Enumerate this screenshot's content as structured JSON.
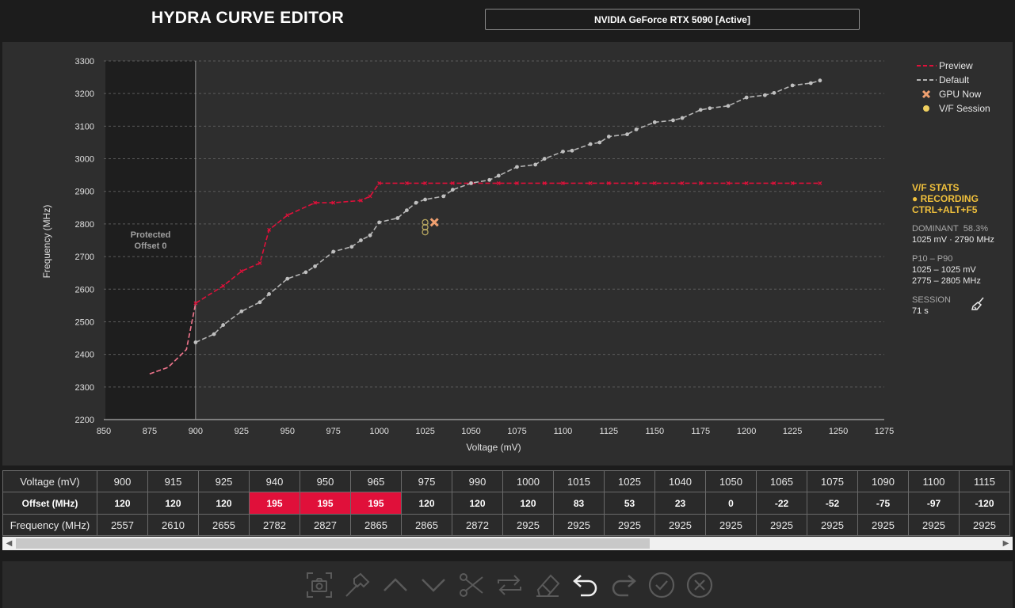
{
  "app": {
    "title": "HYDRA CURVE EDITOR"
  },
  "gpu_select": {
    "value": "NVIDIA GeForce RTX 5090  [Active]"
  },
  "chart": {
    "protected_label_1": "Protected",
    "protected_label_2": "Offset 0",
    "protected_range_mv": [
      850,
      900
    ]
  },
  "chart_data": {
    "type": "line",
    "xlabel": "Voltage (mV)",
    "ylabel": "Frequency (MHz)",
    "xlim": [
      850,
      1275
    ],
    "ylim": [
      2200,
      3300
    ],
    "xticks": [
      850,
      875,
      900,
      925,
      950,
      975,
      1000,
      1025,
      1050,
      1075,
      1100,
      1125,
      1150,
      1175,
      1200,
      1225,
      1250,
      1275
    ],
    "yticks": [
      2200,
      2300,
      2400,
      2500,
      2600,
      2700,
      2800,
      2900,
      3000,
      3100,
      3200,
      3300
    ],
    "grid": "horizontal",
    "legend_position": "top-right",
    "series": [
      {
        "name": "Preview",
        "color": "#e0103a",
        "dash": "dashed",
        "points": [
          [
            875,
            2340
          ],
          [
            885,
            2360
          ],
          [
            895,
            2415
          ],
          [
            900,
            2557
          ],
          [
            915,
            2610
          ],
          [
            925,
            2655
          ],
          [
            935,
            2680
          ],
          [
            940,
            2782
          ],
          [
            950,
            2827
          ],
          [
            965,
            2865
          ],
          [
            975,
            2865
          ],
          [
            990,
            2872
          ],
          [
            995,
            2885
          ],
          [
            1000,
            2925
          ],
          [
            1015,
            2925
          ],
          [
            1025,
            2925
          ],
          [
            1040,
            2925
          ],
          [
            1050,
            2925
          ],
          [
            1065,
            2925
          ],
          [
            1075,
            2925
          ],
          [
            1090,
            2925
          ],
          [
            1100,
            2925
          ],
          [
            1115,
            2925
          ],
          [
            1125,
            2925
          ],
          [
            1140,
            2925
          ],
          [
            1150,
            2925
          ],
          [
            1165,
            2925
          ],
          [
            1175,
            2925
          ],
          [
            1190,
            2925
          ],
          [
            1200,
            2925
          ],
          [
            1215,
            2925
          ],
          [
            1225,
            2925
          ],
          [
            1240,
            2925
          ]
        ]
      },
      {
        "name": "Default",
        "color": "#b4b4b4",
        "dash": "dashed",
        "points": [
          [
            900,
            2437
          ],
          [
            910,
            2462
          ],
          [
            915,
            2490
          ],
          [
            925,
            2532
          ],
          [
            935,
            2560
          ],
          [
            940,
            2585
          ],
          [
            950,
            2632
          ],
          [
            960,
            2652
          ],
          [
            965,
            2670
          ],
          [
            975,
            2715
          ],
          [
            985,
            2730
          ],
          [
            990,
            2750
          ],
          [
            995,
            2765
          ],
          [
            1000,
            2805
          ],
          [
            1010,
            2818
          ],
          [
            1015,
            2842
          ],
          [
            1020,
            2865
          ],
          [
            1025,
            2875
          ],
          [
            1035,
            2885
          ],
          [
            1040,
            2905
          ],
          [
            1050,
            2925
          ],
          [
            1060,
            2935
          ],
          [
            1065,
            2948
          ],
          [
            1075,
            2975
          ],
          [
            1085,
            2982
          ],
          [
            1090,
            3000
          ],
          [
            1100,
            3022
          ],
          [
            1105,
            3025
          ],
          [
            1115,
            3045
          ],
          [
            1120,
            3050
          ],
          [
            1125,
            3068
          ],
          [
            1135,
            3075
          ],
          [
            1140,
            3090
          ],
          [
            1150,
            3112
          ],
          [
            1160,
            3118
          ],
          [
            1165,
            3125
          ],
          [
            1175,
            3150
          ],
          [
            1180,
            3155
          ],
          [
            1190,
            3162
          ],
          [
            1200,
            3188
          ],
          [
            1210,
            3195
          ],
          [
            1215,
            3202
          ],
          [
            1225,
            3225
          ],
          [
            1235,
            3232
          ],
          [
            1240,
            3240
          ]
        ]
      },
      {
        "name": "GPU Now",
        "color": "#f0a070",
        "marker": "x",
        "points": [
          [
            1030,
            2805
          ]
        ]
      },
      {
        "name": "V/F Session",
        "color": "#f0d060",
        "marker": "circle",
        "points": [
          [
            1025,
            2775
          ],
          [
            1025,
            2790
          ],
          [
            1025,
            2805
          ]
        ]
      }
    ]
  },
  "vf_stats": {
    "title": "V/F STATS",
    "recording": "● RECORDING",
    "hotkey": "CTRL+ALT+F5",
    "dominant_label": "DOMINANT",
    "dominant_pct": "58.3%",
    "dominant_value": "1025 mV · 2790 MHz",
    "p_label": "P10 – P90",
    "p_mv": "1025 – 1025 mV",
    "p_mhz": "2775 – 2805 MHz",
    "session_label": "SESSION",
    "session_value": "71 s"
  },
  "table": {
    "row_headers": [
      "Voltage (mV)",
      "Offset (MHz)",
      "Frequency (MHz)"
    ],
    "voltage": [
      "900",
      "915",
      "925",
      "940",
      "950",
      "965",
      "975",
      "990",
      "1000",
      "1015",
      "1025",
      "1040",
      "1050",
      "1065",
      "1075",
      "1090",
      "1100",
      "1115"
    ],
    "offset": [
      "120",
      "120",
      "120",
      "195",
      "195",
      "195",
      "120",
      "120",
      "120",
      "83",
      "53",
      "23",
      "0",
      "-22",
      "-52",
      "-75",
      "-97",
      "-120"
    ],
    "frequency": [
      "2557",
      "2610",
      "2655",
      "2782",
      "2827",
      "2865",
      "2865",
      "2872",
      "2925",
      "2925",
      "2925",
      "2925",
      "2925",
      "2925",
      "2925",
      "2925",
      "2925",
      "2925"
    ],
    "highlighted_columns": [
      3,
      4,
      5
    ]
  },
  "toolbar": {
    "tools": [
      "screenshot-icon",
      "hammer-icon",
      "raise-icon",
      "lower-icon",
      "cut-icon",
      "swap-icon",
      "eraser-icon",
      "undo-icon",
      "redo-icon",
      "apply-icon",
      "cancel-icon"
    ]
  },
  "colors": {
    "accent": "#e0103a",
    "stats_yellow": "#f0c03c",
    "panel": "#2e2e2e"
  }
}
